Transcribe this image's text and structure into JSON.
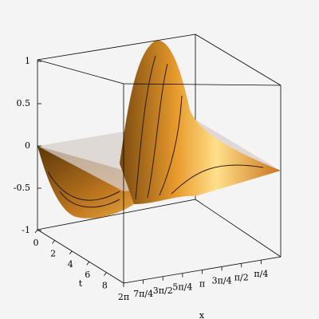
{
  "chart_data": {
    "type": "surface",
    "zlim": [
      -1,
      1
    ],
    "zticks": [
      1,
      0.5,
      0,
      -0.5,
      -1
    ],
    "tlim": [
      0,
      10
    ],
    "tticks": [
      0,
      2,
      4,
      6,
      8
    ],
    "tlabel": "t",
    "xlim": [
      6.2832,
      0
    ],
    "xticks": [
      {
        "value": 6.2832,
        "label": "2π"
      },
      {
        "value": 5.4978,
        "label": "7π/4"
      },
      {
        "value": 4.7124,
        "label": "3π/2"
      },
      {
        "value": 3.927,
        "label": "5π/4"
      },
      {
        "value": 3.1416,
        "label": "π"
      },
      {
        "value": 2.3562,
        "label": "3π/4"
      },
      {
        "value": 1.5708,
        "label": "π/2"
      },
      {
        "value": 0.7854,
        "label": "π/4"
      }
    ],
    "xlabel": "x"
  }
}
